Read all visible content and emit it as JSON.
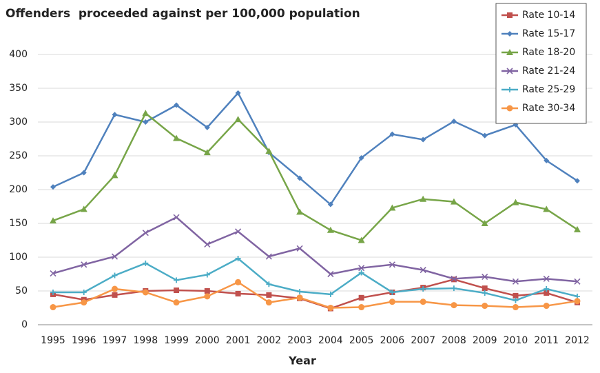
{
  "chart_data": {
    "type": "line",
    "title": "Offenders  proceeded against per 100,000 population",
    "x_label": "Year",
    "categories": [
      "1995",
      "1996",
      "1997",
      "1998",
      "1999",
      "2000",
      "2001",
      "2002",
      "2003",
      "2004",
      "2005",
      "2006",
      "2007",
      "2008",
      "2009",
      "2010",
      "2011",
      "2012"
    ],
    "ylim": [
      0,
      400
    ],
    "yticks": [
      0,
      50,
      100,
      150,
      200,
      250,
      300,
      350,
      400
    ],
    "grid": true,
    "legend": "top-right",
    "series": [
      {
        "name": "Rate 10-14",
        "color": "#c0504d",
        "marker": "square",
        "values": [
          45,
          37,
          44,
          50,
          51,
          50,
          46,
          44,
          39,
          24,
          40,
          48,
          55,
          67,
          54,
          43,
          47,
          33
        ]
      },
      {
        "name": "Rate 15-17",
        "color": "#4f81bd",
        "marker": "diamond",
        "values": [
          204,
          225,
          311,
          300,
          325,
          292,
          343,
          255,
          217,
          178,
          247,
          282,
          274,
          301,
          280,
          296,
          243,
          213
        ]
      },
      {
        "name": "Rate 18-20",
        "color": "#77a548",
        "marker": "triangle",
        "values": [
          154,
          171,
          221,
          313,
          276,
          255,
          304,
          257,
          167,
          140,
          125,
          173,
          186,
          182,
          150,
          181,
          171,
          141
        ]
      },
      {
        "name": "Rate 21-24",
        "color": "#8064a2",
        "marker": "x",
        "values": [
          76,
          89,
          101,
          136,
          159,
          119,
          138,
          101,
          113,
          75,
          84,
          89,
          81,
          68,
          71,
          64,
          68,
          64
        ]
      },
      {
        "name": "Rate 25-29",
        "color": "#4bacc6",
        "marker": "plus",
        "values": [
          48,
          48,
          73,
          91,
          66,
          74,
          98,
          60,
          49,
          45,
          77,
          48,
          53,
          54,
          47,
          36,
          53,
          42
        ]
      },
      {
        "name": "Rate 30-34",
        "color": "#f79646",
        "marker": "circle",
        "values": [
          26,
          33,
          53,
          48,
          33,
          42,
          63,
          33,
          40,
          25,
          26,
          34,
          34,
          29,
          28,
          26,
          28,
          35
        ]
      }
    ]
  }
}
